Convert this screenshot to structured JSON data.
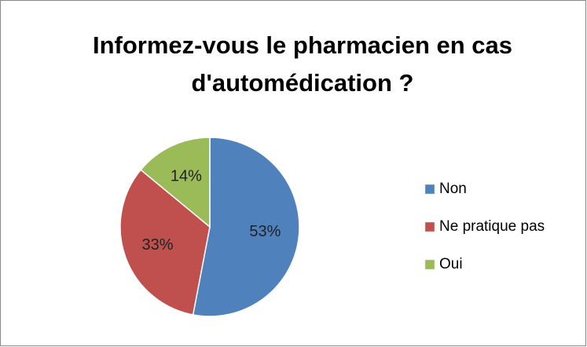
{
  "chart_data": {
    "type": "pie",
    "title": "Informez-vous le pharmacien en cas d'automédication ?",
    "categories": [
      "Non",
      "Ne pratique pas",
      "Oui"
    ],
    "values": [
      53,
      33,
      14
    ],
    "value_labels": [
      "53%",
      "33%",
      "14%"
    ],
    "colors": [
      "#4f81bd",
      "#c0504d",
      "#9bbb59"
    ],
    "legend": "right"
  }
}
